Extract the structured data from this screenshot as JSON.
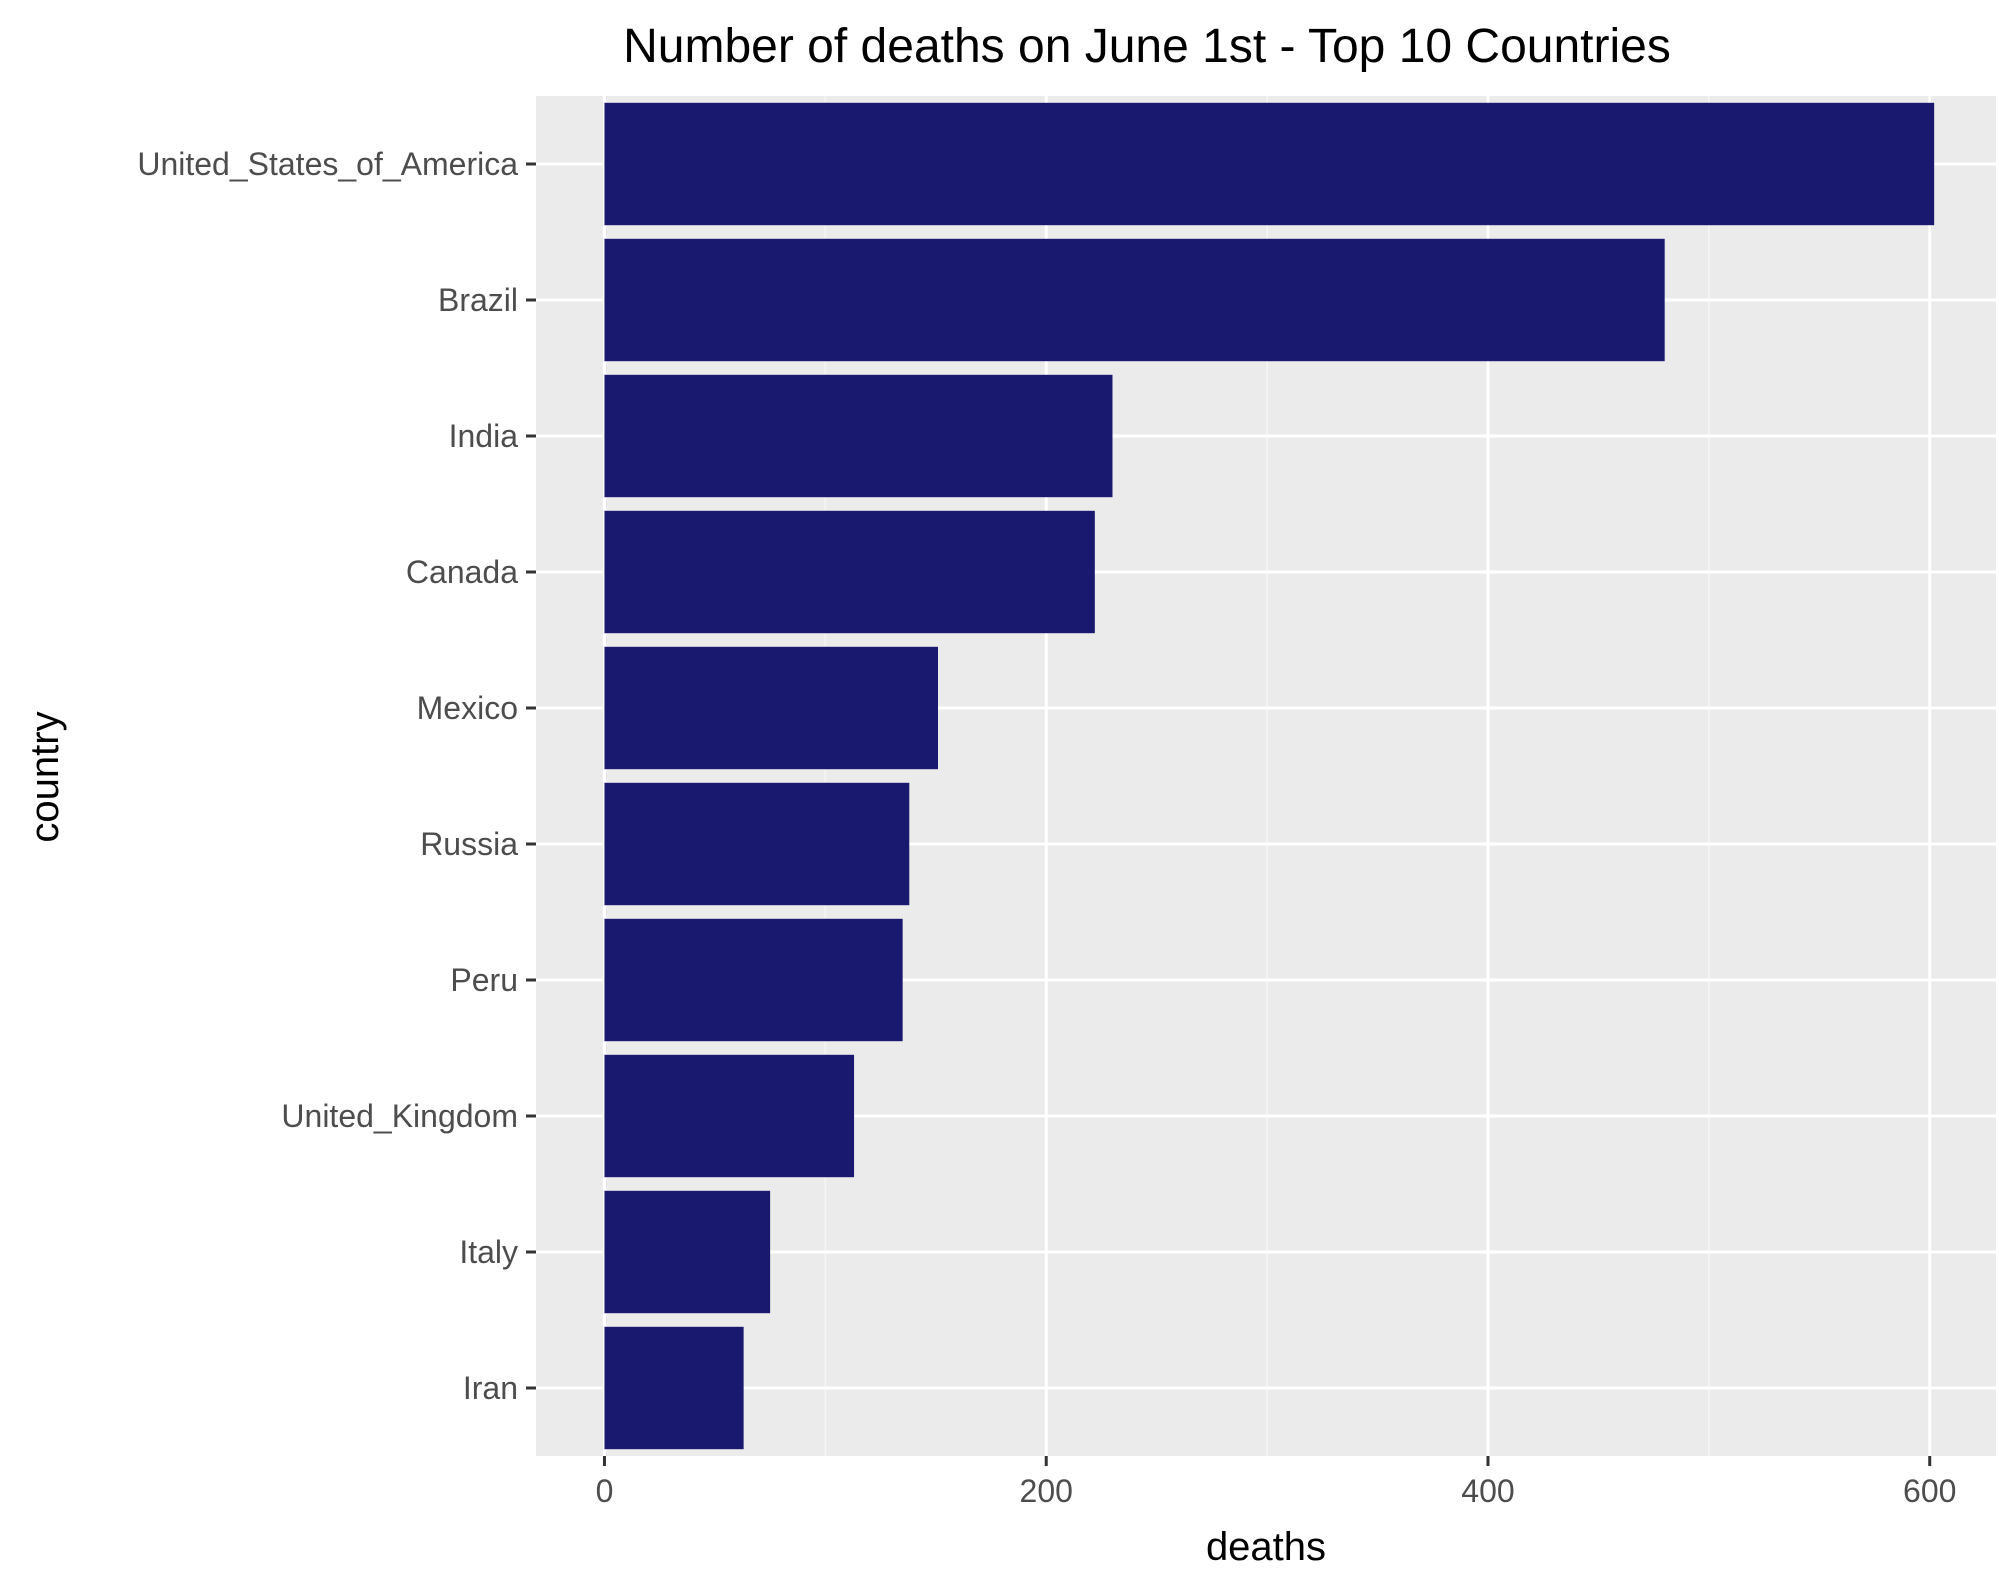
{
  "chart_data": {
    "type": "bar",
    "orientation": "horizontal",
    "title": "Number of deaths on June 1st - Top 10 Countries",
    "xlabel": "deaths",
    "ylabel": "country",
    "categories": [
      "United_States_of_America",
      "Brazil",
      "India",
      "Canada",
      "Mexico",
      "Russia",
      "Peru",
      "United_Kingdom",
      "Italy",
      "Iran"
    ],
    "values": [
      602,
      480,
      230,
      222,
      151,
      138,
      135,
      113,
      75,
      63
    ],
    "xlim": [
      -31,
      630
    ],
    "xticks": [
      0,
      200,
      400,
      600
    ],
    "xtick_labels": [
      "0",
      "200",
      "400",
      "600"
    ],
    "grid": true,
    "legend": "none",
    "colors": {
      "bar": "#191970",
      "panel_background": "#ebebeb",
      "grid_major": "#ffffff",
      "grid_minor": "#f5f5f5",
      "tick_label": "#4d4d4d",
      "text": "#000000"
    }
  }
}
